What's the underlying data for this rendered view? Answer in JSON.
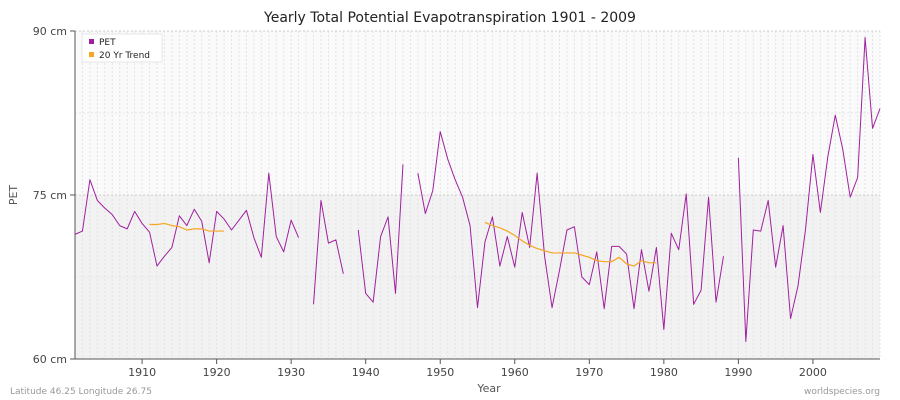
{
  "chart_data": {
    "type": "line",
    "title": "Yearly Total Potential Evapotranspiration 1901 - 2009",
    "xlabel": "Year",
    "ylabel": "PET",
    "xlim": [
      1901,
      2009
    ],
    "ylim": [
      60,
      90
    ],
    "y_ticks": [
      {
        "value": 60,
        "label": "60 cm"
      },
      {
        "value": 75,
        "label": "75 cm"
      },
      {
        "value": 90,
        "label": "90 cm"
      }
    ],
    "x_ticks": [
      1910,
      1920,
      1930,
      1940,
      1950,
      1960,
      1970,
      1980,
      1990,
      2000
    ],
    "grid": true,
    "legend_position": "top-left",
    "series": [
      {
        "name": "PET",
        "color": "#a020a0",
        "x": [
          1901,
          1902,
          1903,
          1904,
          1905,
          1906,
          1907,
          1908,
          1909,
          1910,
          1911,
          1912,
          1913,
          1914,
          1915,
          1916,
          1917,
          1918,
          1919,
          1920,
          1921,
          1922,
          1923,
          1924,
          1925,
          1926,
          1927,
          1928,
          1929,
          1930,
          1931,
          1932,
          1933,
          1934,
          1935,
          1936,
          1937,
          1938,
          1939,
          1940,
          1941,
          1942,
          1943,
          1944,
          1945,
          1946,
          1947,
          1948,
          1949,
          1950,
          1951,
          1952,
          1953,
          1954,
          1955,
          1956,
          1957,
          1958,
          1959,
          1960,
          1961,
          1962,
          1963,
          1964,
          1965,
          1966,
          1967,
          1968,
          1969,
          1970,
          1971,
          1972,
          1973,
          1974,
          1975,
          1976,
          1977,
          1978,
          1979,
          1980,
          1981,
          1982,
          1983,
          1984,
          1985,
          1986,
          1987,
          1988,
          1989,
          1990,
          1991,
          1992,
          1993,
          1994,
          1995,
          1996,
          1997,
          1998,
          1999,
          2000,
          2001,
          2002,
          2003,
          2004,
          2005,
          2006,
          2007,
          2008,
          2009
        ],
        "values": [
          71.4,
          71.7,
          76.4,
          74.5,
          73.8,
          73.2,
          72.2,
          71.9,
          73.5,
          72.4,
          71.6,
          68.5,
          69.4,
          70.2,
          73.1,
          72.2,
          73.7,
          72.6,
          68.8,
          73.5,
          72.8,
          71.8,
          72.7,
          73.6,
          71.1,
          69.3,
          77.0,
          71.2,
          69.8,
          72.7,
          71.1,
          null,
          65.0,
          74.5,
          70.6,
          70.9,
          67.8,
          null,
          71.8,
          66.0,
          65.2,
          71.2,
          73.0,
          66.0,
          77.8,
          null,
          77.0,
          73.3,
          75.4,
          80.8,
          78.3,
          76.4,
          74.8,
          72.2,
          64.7,
          70.7,
          73.0,
          68.5,
          71.2,
          68.4,
          73.4,
          70.2,
          77.0,
          69.4,
          64.7,
          68.1,
          71.8,
          72.1,
          67.5,
          66.8,
          69.8,
          64.6,
          70.3,
          70.3,
          69.6,
          64.6,
          70.0,
          66.2,
          70.2,
          62.7,
          71.5,
          70.0,
          75.1,
          65.0,
          66.3,
          74.8,
          65.2,
          69.4,
          null,
          78.4,
          61.6,
          71.8,
          71.7,
          74.5,
          68.4,
          72.2,
          63.7,
          66.7,
          71.8,
          78.7,
          73.4,
          78.5,
          82.3,
          79.2,
          74.8,
          76.6,
          89.4,
          81.1,
          82.9
        ]
      },
      {
        "name": "20 Yr Trend",
        "color": "#f5a623",
        "x": [
          1911,
          1912,
          1913,
          1914,
          1915,
          1916,
          1917,
          1918,
          1919,
          1920,
          1921,
          1956,
          1957,
          1958,
          1959,
          1960,
          1961,
          1962,
          1963,
          1964,
          1965,
          1966,
          1967,
          1968,
          1969,
          1970,
          1971,
          1972,
          1973,
          1974,
          1975,
          1976,
          1977,
          1978,
          1979
        ],
        "values": [
          72.3,
          72.3,
          72.4,
          72.2,
          72.1,
          71.8,
          71.9,
          71.9,
          71.7,
          71.7,
          71.7,
          72.5,
          72.2,
          72.0,
          71.7,
          71.3,
          70.8,
          70.4,
          70.1,
          69.9,
          69.7,
          69.7,
          69.7,
          69.7,
          69.5,
          69.3,
          69.0,
          68.9,
          68.9,
          69.3,
          68.7,
          68.5,
          69.0,
          68.8,
          68.8
        ]
      }
    ]
  },
  "footer": {
    "location": "Latitude 46.25 Longitude 26.75",
    "source": "worldspecies.org"
  }
}
